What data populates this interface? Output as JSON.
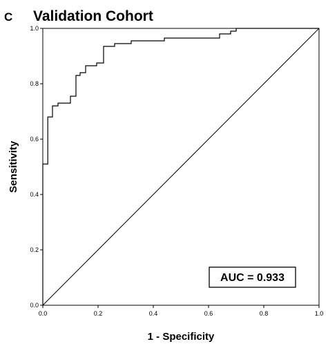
{
  "panel_label": "C",
  "chart_data": {
    "type": "line",
    "title": "Validation Cohort",
    "xlabel": "1 - Specificity",
    "ylabel": "Sensitivity",
    "xlim": [
      0,
      1
    ],
    "ylim": [
      0,
      1
    ],
    "x_ticks": [
      "0.0",
      "0.2",
      "0.4",
      "0.6",
      "0.8",
      "1.0"
    ],
    "y_ticks": [
      "0.0",
      "0.2",
      "0.4",
      "0.6",
      "0.8",
      "1.0"
    ],
    "grid": false,
    "annotation": "AUC = 0.933",
    "series": [
      {
        "x": [
          0,
          0,
          0.018,
          0.018,
          0.035,
          0.035,
          0.055,
          0.055,
          0.1,
          0.1,
          0.12,
          0.12,
          0.135,
          0.135,
          0.155,
          0.155,
          0.195,
          0.195,
          0.22,
          0.22,
          0.26,
          0.26,
          0.32,
          0.32,
          0.44,
          0.44,
          0.64,
          0.64,
          0.68,
          0.68,
          0.7,
          0.7,
          1.0
        ],
        "y": [
          0,
          0.51,
          0.51,
          0.68,
          0.68,
          0.72,
          0.72,
          0.73,
          0.73,
          0.755,
          0.755,
          0.83,
          0.83,
          0.84,
          0.84,
          0.865,
          0.865,
          0.875,
          0.875,
          0.935,
          0.935,
          0.945,
          0.945,
          0.955,
          0.955,
          0.965,
          0.965,
          0.98,
          0.98,
          0.99,
          0.99,
          1.0,
          1.0
        ]
      },
      {
        "x": [
          0,
          1
        ],
        "y": [
          0,
          1
        ]
      }
    ]
  }
}
